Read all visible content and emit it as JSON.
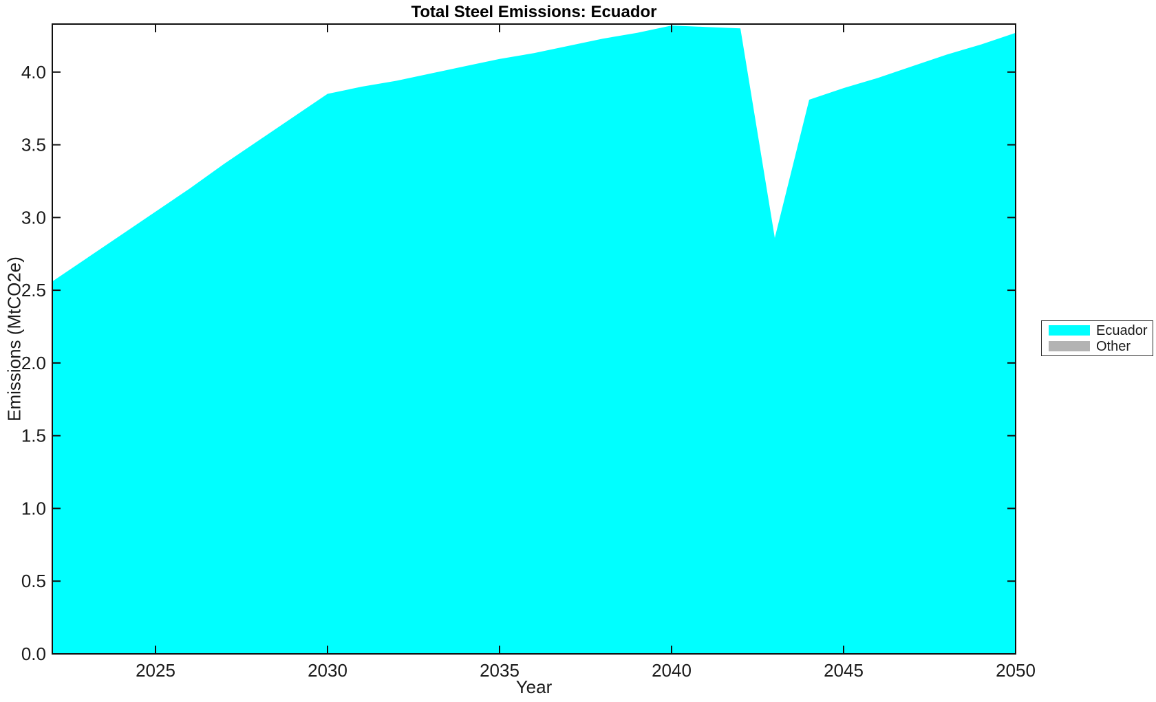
{
  "chart_data": {
    "type": "area",
    "title": "Total Steel Emissions: Ecuador",
    "xlabel": "Year",
    "ylabel": "Emissions (MtCO2e)",
    "xlim": [
      2022,
      2050
    ],
    "ylim": [
      0,
      4.33
    ],
    "xtick_labels": [
      "2025",
      "2030",
      "2035",
      "2040",
      "2045",
      "2050"
    ],
    "ytick_labels": [
      "0.0",
      "0.5",
      "1.0",
      "1.5",
      "2.0",
      "2.5",
      "3.0",
      "3.5",
      "4.0"
    ],
    "grid": false,
    "legend_position": "outside-right",
    "x": [
      2022,
      2023,
      2024,
      2025,
      2026,
      2027,
      2028,
      2029,
      2030,
      2031,
      2032,
      2033,
      2034,
      2035,
      2036,
      2037,
      2038,
      2039,
      2040,
      2041,
      2042,
      2043,
      2044,
      2045,
      2046,
      2047,
      2048,
      2049,
      2050
    ],
    "series": [
      {
        "name": "Ecuador",
        "color": "#00FFFF",
        "values": [
          2.56,
          2.72,
          2.88,
          3.04,
          3.2,
          3.37,
          3.53,
          3.69,
          3.85,
          3.9,
          3.94,
          3.99,
          4.04,
          4.09,
          4.13,
          4.18,
          4.23,
          4.27,
          4.32,
          4.31,
          4.3,
          2.86,
          3.81,
          3.89,
          3.96,
          4.04,
          4.12,
          4.19,
          4.27
        ]
      },
      {
        "name": "Other",
        "color": "#B3B3B3",
        "values": []
      }
    ]
  }
}
